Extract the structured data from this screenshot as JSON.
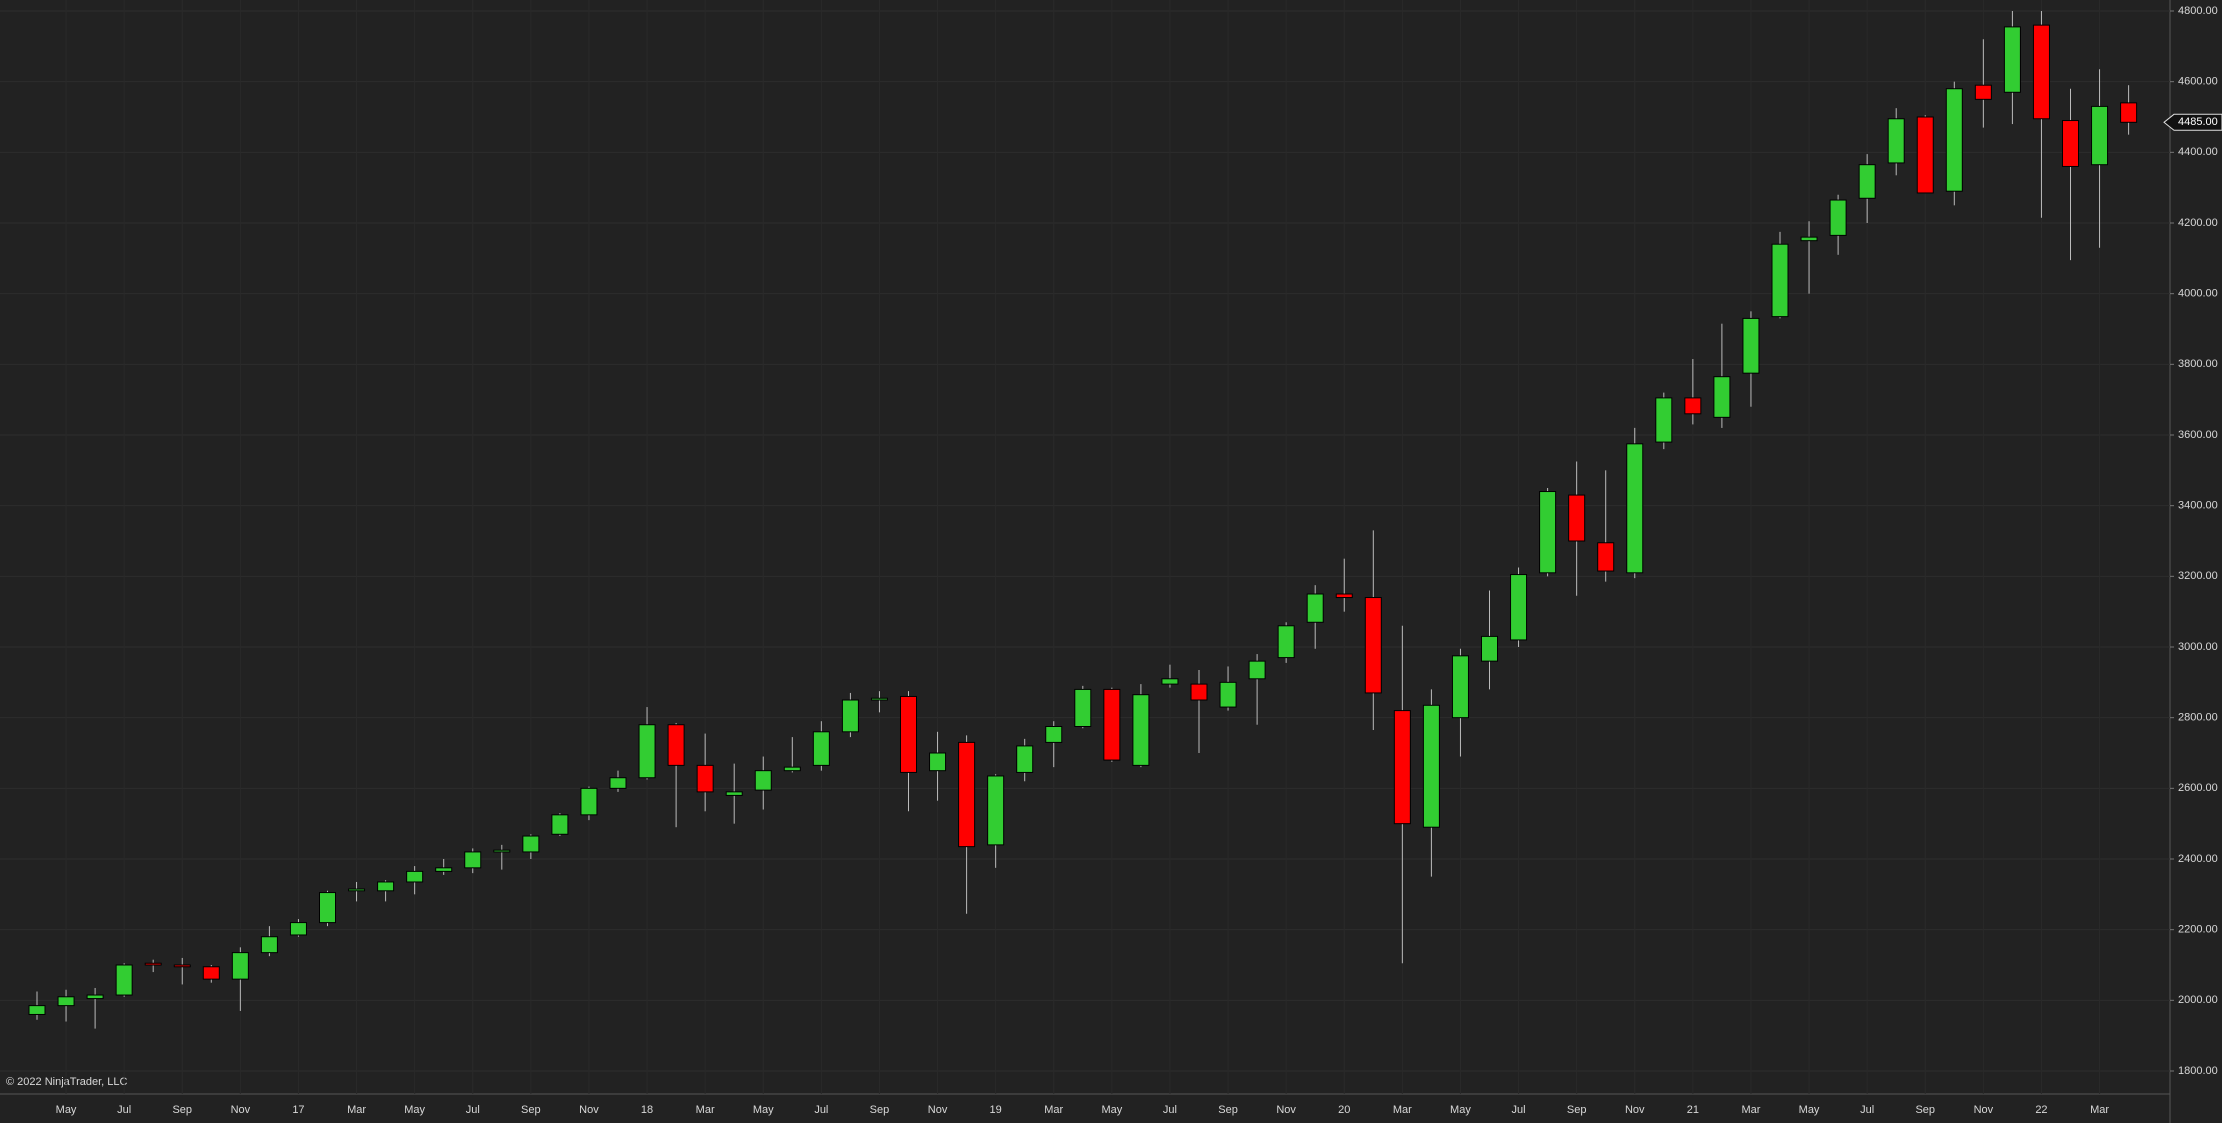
{
  "chart_data": {
    "type": "candlestick",
    "categories": [
      null,
      "May",
      null,
      "Jul",
      null,
      "Sep",
      null,
      "Nov",
      null,
      "17",
      null,
      "Mar",
      null,
      "May",
      null,
      "Jul",
      null,
      "Sep",
      null,
      "Nov",
      null,
      "18",
      null,
      "Mar",
      null,
      "May",
      null,
      "Jul",
      null,
      "Sep",
      null,
      "Nov",
      null,
      "19",
      null,
      "Mar",
      null,
      "May",
      null,
      "Jul",
      null,
      "Sep",
      null,
      "Nov",
      null,
      "20",
      null,
      "Mar",
      null,
      "May",
      null,
      "Jul",
      null,
      "Sep",
      null,
      "Nov",
      null,
      "21",
      null,
      "Mar",
      null,
      "May",
      null,
      "Jul",
      null,
      "Sep",
      null,
      "Nov",
      null,
      "22",
      null,
      "Mar",
      null
    ],
    "open": [
      1960,
      1985,
      2005,
      2015,
      2105,
      2100,
      2095,
      2060,
      2135,
      2185,
      2220,
      2310,
      2310,
      2335,
      2365,
      2375,
      2420,
      2420,
      2470,
      2525,
      2600,
      2630,
      2780,
      2665,
      2580,
      2595,
      2650,
      2665,
      2760,
      2850,
      2860,
      2650,
      2730,
      2440,
      2645,
      2730,
      2775,
      2880,
      2665,
      2895,
      2895,
      2830,
      2910,
      2970,
      3070,
      3150,
      3140,
      2820,
      2490,
      2800,
      2960,
      3020,
      3210,
      3430,
      3295,
      3210,
      3580,
      3705,
      3650,
      3775,
      3935,
      4150,
      4165,
      4270,
      4370,
      4500,
      4290,
      4590,
      4570,
      4760,
      4490,
      4365,
      4540
    ],
    "high": [
      2025,
      2030,
      2035,
      2105,
      2115,
      2120,
      2100,
      2150,
      2210,
      2230,
      2310,
      2335,
      2340,
      2380,
      2400,
      2430,
      2440,
      2470,
      2530,
      2605,
      2650,
      2830,
      2785,
      2755,
      2670,
      2690,
      2745,
      2790,
      2870,
      2875,
      2875,
      2760,
      2750,
      2640,
      2740,
      2790,
      2890,
      2885,
      2895,
      2950,
      2935,
      2945,
      2980,
      3070,
      3175,
      3250,
      3330,
      3060,
      2880,
      2995,
      3160,
      3225,
      3450,
      3525,
      3500,
      3620,
      3720,
      3815,
      3915,
      3950,
      4175,
      4205,
      4280,
      4395,
      4525,
      4505,
      4600,
      4720,
      4800,
      4800,
      4580,
      4635,
      4590
    ],
    "low": [
      1945,
      1940,
      1920,
      2010,
      2080,
      2045,
      2050,
      1970,
      2125,
      2180,
      2210,
      2280,
      2280,
      2300,
      2355,
      2360,
      2370,
      2400,
      2465,
      2510,
      2590,
      2625,
      2490,
      2535,
      2500,
      2540,
      2645,
      2650,
      2745,
      2815,
      2535,
      2565,
      2245,
      2375,
      2620,
      2660,
      2770,
      2675,
      2660,
      2885,
      2700,
      2820,
      2780,
      2955,
      2995,
      3100,
      2765,
      2105,
      2350,
      2690,
      2880,
      3000,
      3200,
      3145,
      3185,
      3195,
      3560,
      3630,
      3620,
      3680,
      3930,
      4000,
      4110,
      4200,
      4335,
      4285,
      4250,
      4470,
      4480,
      4215,
      4095,
      4130,
      4450
    ],
    "close": [
      1985,
      2010,
      2015,
      2100,
      2100,
      2095,
      2060,
      2135,
      2180,
      2220,
      2305,
      2315,
      2335,
      2365,
      2375,
      2420,
      2425,
      2465,
      2525,
      2600,
      2630,
      2780,
      2665,
      2590,
      2590,
      2650,
      2660,
      2760,
      2850,
      2855,
      2645,
      2700,
      2435,
      2635,
      2720,
      2775,
      2880,
      2680,
      2865,
      2910,
      2850,
      2900,
      2960,
      3060,
      3150,
      3140,
      2870,
      2500,
      2835,
      2975,
      3030,
      3205,
      3440,
      3300,
      3215,
      3575,
      3705,
      3660,
      3765,
      3930,
      4140,
      4160,
      4265,
      4365,
      4495,
      4285,
      4580,
      4550,
      4755,
      4495,
      4360,
      4530,
      4485
    ],
    "up_color": "#32cd32",
    "down_color": "#ff0000",
    "ylim": [
      1800,
      4800
    ],
    "yticks": [
      {
        "value": 1800,
        "label": "1800.00"
      },
      {
        "value": 2000,
        "label": "2000.00"
      },
      {
        "value": 2200,
        "label": "2200.00"
      },
      {
        "value": 2400,
        "label": "2400.00"
      },
      {
        "value": 2600,
        "label": "2600.00"
      },
      {
        "value": 2800,
        "label": "2800.00"
      },
      {
        "value": 3000,
        "label": "3000.00"
      },
      {
        "value": 3200,
        "label": "3200.00"
      },
      {
        "value": 3400,
        "label": "3400.00"
      },
      {
        "value": 3600,
        "label": "3600.00"
      },
      {
        "value": 3800,
        "label": "3800.00"
      },
      {
        "value": 4000,
        "label": "4000.00"
      },
      {
        "value": 4200,
        "label": "4200.00"
      },
      {
        "value": 4400,
        "label": "4400.00"
      },
      {
        "value": 4600,
        "label": "4600.00"
      },
      {
        "value": 4800,
        "label": "4800.00"
      }
    ],
    "last_price": {
      "value": 4485,
      "label": "4485.00"
    },
    "copyright": "© 2022 NinjaTrader, LLC",
    "grid": true
  }
}
